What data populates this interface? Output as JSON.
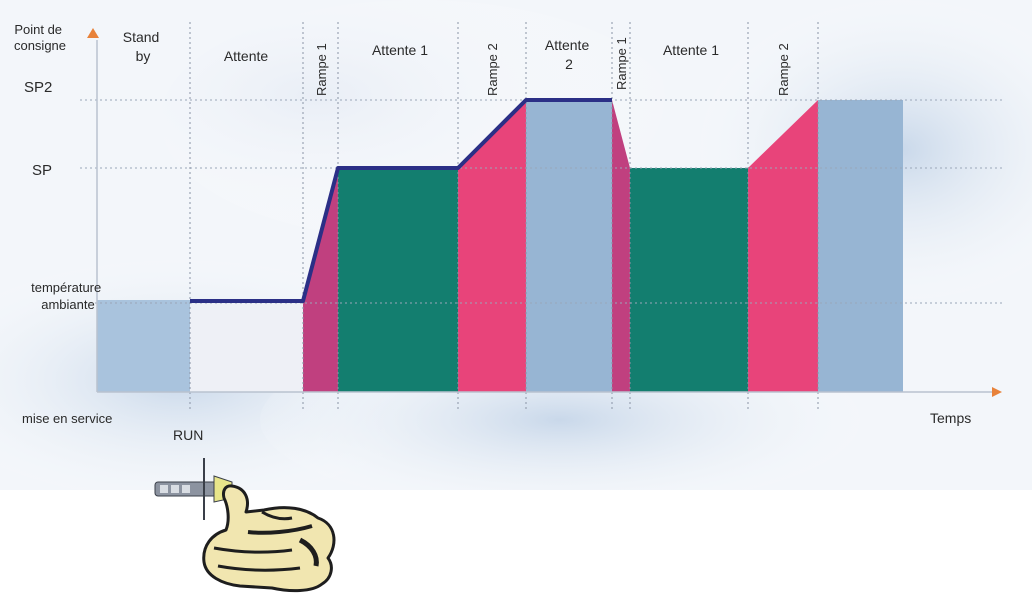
{
  "y_axis_title": [
    "Point de",
    "consigne"
  ],
  "x_axis_title": "Temps",
  "y_levels": {
    "sp2": "SP2",
    "sp": "SP",
    "ambient": [
      "température",
      "ambiante"
    ]
  },
  "start_label": "mise en service",
  "run_label": "RUN",
  "phases": {
    "standby": [
      "Stand",
      "by"
    ],
    "attente": "Attente",
    "rampe1_a": "Rampe 1",
    "attente1_a": "Attente 1",
    "rampe2_a": "Rampe 2",
    "attente2": [
      "Attente",
      "2"
    ],
    "rampe1_b": "Rampe 1",
    "attente1_b": "Attente 1",
    "rampe2_b": "Rampe 2"
  },
  "colors": {
    "standby_fill": "#a9c3dd",
    "attente_fill": "#eef0f6",
    "rampe1_fill": "#c0407f",
    "attente1_fill": "#137e6f",
    "rampe2_fill": "#e8447a",
    "attente2_fill": "#97b5d3",
    "profile_line": "#2b2f86",
    "axis_arrow": "#e8823a"
  }
}
